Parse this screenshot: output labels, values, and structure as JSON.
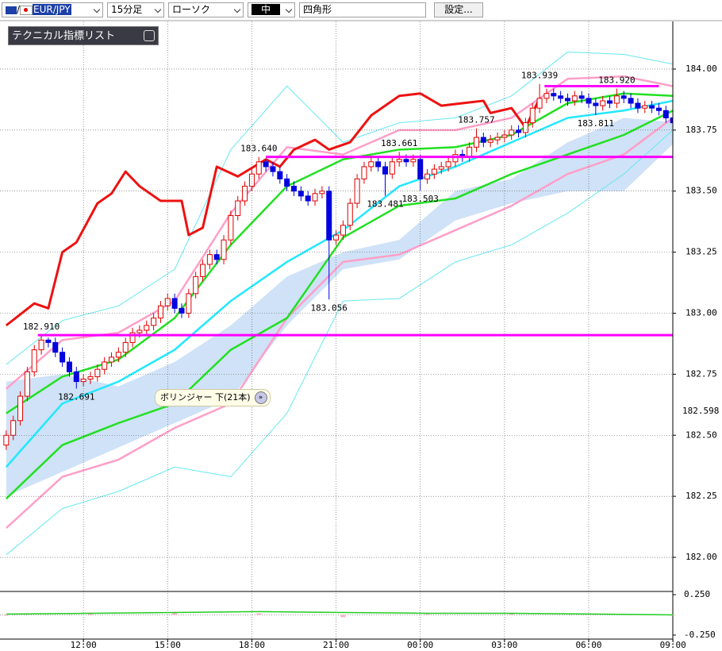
{
  "toolbar": {
    "symbol": "EUR/JPY",
    "timeframe": "15分足",
    "chart_style": "ローソク",
    "line_width": "中",
    "drawing_tool": "四角形",
    "settings_button": "設定..."
  },
  "indicator_panel": {
    "title": "テクニカル指標リスト"
  },
  "tooltip": {
    "text": "ボリンジャー 下(21本)"
  },
  "chart_data": {
    "type": "candlestick",
    "ylim": [
      181.87,
      184.195
    ],
    "yticks": [
      {
        "value": 184.0,
        "label": "184.00"
      },
      {
        "value": 183.75,
        "label": "183.75"
      },
      {
        "value": 183.5,
        "label": "183.50"
      },
      {
        "value": 183.25,
        "label": "183.25"
      },
      {
        "value": 183.0,
        "label": "183.00"
      },
      {
        "value": 182.75,
        "label": "182.75"
      },
      {
        "value": 182.5,
        "label": "182.50"
      },
      {
        "value": 182.25,
        "label": "182.25"
      },
      {
        "value": 182.0,
        "label": "182.00"
      }
    ],
    "price_marker": 182.598,
    "xlim": [
      -1,
      96
    ],
    "xticks": [
      {
        "value": 11,
        "label": "12:00"
      },
      {
        "value": 23,
        "label": "15:00"
      },
      {
        "value": 35,
        "label": "18:00"
      },
      {
        "value": 47,
        "label": "21:00"
      },
      {
        "value": 59,
        "label": "00:00"
      },
      {
        "value": 71,
        "label": "03:00"
      },
      {
        "value": 83,
        "label": "06:00"
      },
      {
        "value": 95,
        "label": "09:00"
      }
    ],
    "grid": true,
    "up_color": "#e00000",
    "down_color": "#0000e0",
    "open": [
      182.46,
      182.5,
      182.56,
      182.66,
      182.76,
      182.85,
      182.89,
      182.88,
      182.84,
      182.8,
      182.76,
      182.72,
      182.73,
      182.74,
      182.77,
      182.8,
      182.82,
      182.84,
      182.88,
      182.92,
      182.93,
      182.95,
      182.98,
      183.03,
      183.06,
      183.02,
      183.0,
      183.08,
      183.15,
      183.2,
      183.24,
      183.22,
      183.3,
      183.4,
      183.46,
      183.52,
      183.57,
      183.62,
      183.6,
      183.58,
      183.55,
      183.52,
      183.5,
      183.48,
      183.46,
      183.49,
      183.5,
      183.3,
      183.32,
      183.36,
      183.45,
      183.55,
      183.6,
      183.62,
      183.6,
      183.57,
      183.62,
      183.63,
      183.62,
      183.63,
      183.55,
      183.57,
      183.59,
      183.6,
      183.62,
      183.65,
      183.64,
      183.68,
      183.72,
      183.7,
      183.71,
      183.72,
      183.73,
      183.75,
      183.74,
      183.78,
      183.84,
      183.88,
      183.9,
      183.89,
      183.88,
      183.87,
      183.89,
      183.88,
      183.86,
      183.85,
      183.87,
      183.86,
      183.89,
      183.88,
      183.86,
      183.84,
      183.85,
      183.84,
      183.83,
      183.8
    ],
    "high": [
      182.52,
      182.58,
      182.68,
      182.78,
      182.87,
      182.91,
      182.9,
      182.9,
      182.86,
      182.82,
      182.78,
      182.75,
      182.76,
      182.79,
      182.82,
      182.84,
      182.86,
      182.9,
      182.94,
      182.95,
      182.97,
      183.0,
      183.05,
      183.08,
      183.08,
      183.04,
      183.1,
      183.17,
      183.22,
      183.26,
      183.26,
      183.32,
      183.42,
      183.48,
      183.54,
      183.59,
      183.64,
      183.63,
      183.62,
      183.6,
      183.57,
      183.54,
      183.52,
      183.5,
      183.51,
      183.52,
      183.52,
      183.34,
      183.38,
      183.47,
      183.57,
      183.62,
      183.64,
      183.64,
      183.62,
      183.64,
      183.661,
      183.65,
      183.65,
      183.65,
      183.59,
      183.61,
      183.62,
      183.64,
      183.67,
      183.67,
      183.7,
      183.757,
      183.74,
      183.73,
      183.74,
      183.75,
      183.77,
      183.77,
      183.8,
      183.86,
      183.939,
      183.92,
      183.92,
      183.91,
      183.9,
      183.91,
      183.91,
      183.9,
      183.88,
      183.89,
      183.89,
      183.92,
      183.91,
      183.9,
      183.88,
      183.87,
      183.87,
      183.86,
      183.85,
      183.82
    ],
    "low": [
      182.44,
      182.48,
      182.54,
      182.64,
      182.74,
      182.83,
      182.86,
      182.82,
      182.78,
      182.74,
      182.691,
      182.7,
      182.71,
      182.72,
      182.75,
      182.78,
      182.8,
      182.82,
      182.86,
      182.9,
      182.91,
      182.93,
      182.96,
      183.01,
      183.0,
      182.98,
      182.98,
      183.06,
      183.13,
      183.18,
      183.2,
      183.2,
      183.28,
      183.38,
      183.44,
      183.5,
      183.55,
      183.58,
      183.56,
      183.53,
      183.5,
      183.48,
      183.46,
      183.44,
      183.44,
      183.47,
      183.056,
      183.28,
      183.3,
      183.34,
      183.43,
      183.53,
      183.58,
      183.58,
      183.481,
      183.55,
      183.6,
      183.6,
      183.6,
      183.503,
      183.53,
      183.55,
      183.57,
      183.58,
      183.6,
      183.62,
      183.62,
      183.66,
      183.68,
      183.68,
      183.69,
      183.7,
      183.71,
      183.72,
      183.72,
      183.76,
      183.82,
      183.86,
      183.87,
      183.86,
      183.85,
      183.85,
      183.86,
      183.84,
      183.811,
      183.83,
      183.84,
      183.84,
      183.86,
      183.84,
      183.82,
      183.82,
      183.82,
      183.81,
      183.78,
      183.76
    ],
    "close": [
      182.5,
      182.56,
      182.66,
      182.76,
      182.85,
      182.89,
      182.88,
      182.84,
      182.8,
      182.76,
      182.72,
      182.73,
      182.74,
      182.77,
      182.8,
      182.82,
      182.84,
      182.88,
      182.92,
      182.93,
      182.95,
      182.98,
      183.03,
      183.06,
      183.02,
      183.0,
      183.08,
      183.15,
      183.2,
      183.24,
      183.22,
      183.3,
      183.4,
      183.46,
      183.52,
      183.57,
      183.62,
      183.6,
      183.58,
      183.55,
      183.52,
      183.5,
      183.48,
      183.46,
      183.49,
      183.5,
      183.3,
      183.32,
      183.36,
      183.45,
      183.55,
      183.6,
      183.62,
      183.6,
      183.57,
      183.62,
      183.63,
      183.62,
      183.63,
      183.55,
      183.57,
      183.59,
      183.6,
      183.62,
      183.65,
      183.64,
      183.68,
      183.72,
      183.7,
      183.71,
      183.72,
      183.73,
      183.75,
      183.74,
      183.78,
      183.84,
      183.88,
      183.9,
      183.89,
      183.88,
      183.87,
      183.89,
      183.88,
      183.86,
      183.85,
      183.87,
      183.86,
      183.89,
      183.88,
      183.86,
      183.84,
      183.85,
      183.84,
      183.83,
      183.8,
      183.78
    ],
    "cloud": {
      "color": "#cfe2f7",
      "x": [
        0,
        8,
        16,
        24,
        32,
        40,
        48,
        56,
        64,
        72,
        80,
        88,
        96
      ],
      "span_a": [
        182.72,
        182.75,
        182.7,
        182.8,
        182.95,
        183.15,
        183.25,
        183.3,
        183.5,
        183.55,
        183.7,
        183.8,
        183.78
      ],
      "span_b": [
        182.25,
        182.35,
        182.45,
        182.55,
        182.65,
        182.95,
        183.18,
        183.22,
        183.38,
        183.45,
        183.5,
        183.5,
        183.72
      ]
    },
    "lines": [
      {
        "color": "#66e8f0",
        "width": 1,
        "x": [
          0,
          8,
          16,
          24,
          32,
          40,
          48,
          56,
          64,
          72,
          80,
          88,
          95
        ],
        "values": [
          182.79,
          182.97,
          183.03,
          183.18,
          183.67,
          183.93,
          183.7,
          183.78,
          183.8,
          183.89,
          184.07,
          184.06,
          184.02
        ]
      },
      {
        "color": "#66e8f0",
        "width": 1,
        "x": [
          0,
          8,
          16,
          24,
          32,
          40,
          48,
          56,
          64,
          72,
          80,
          88,
          95
        ],
        "values": [
          182.01,
          182.2,
          182.27,
          182.37,
          182.33,
          182.59,
          183.05,
          183.06,
          183.21,
          183.28,
          183.41,
          183.57,
          183.75
        ]
      },
      {
        "color": "#ff9ec8",
        "width": 2.5,
        "x": [
          0,
          8,
          16,
          24,
          32,
          40,
          48,
          56,
          64,
          72,
          80,
          88,
          95
        ],
        "values": [
          182.69,
          182.89,
          182.92,
          183.05,
          183.41,
          183.68,
          183.65,
          183.75,
          183.75,
          183.8,
          183.96,
          183.97,
          183.93
        ]
      },
      {
        "color": "#ff9ec8",
        "width": 2.5,
        "x": [
          0,
          8,
          16,
          24,
          32,
          40,
          48,
          56,
          64,
          72,
          80,
          88,
          95
        ],
        "values": [
          182.12,
          182.33,
          182.4,
          182.53,
          182.63,
          182.98,
          183.21,
          183.24,
          183.34,
          183.44,
          183.57,
          183.65,
          183.8
        ]
      },
      {
        "color": "#22e022",
        "width": 2.5,
        "x": [
          0,
          8,
          16,
          24,
          32,
          40,
          48,
          56,
          64,
          72,
          80,
          88,
          95
        ],
        "values": [
          182.59,
          182.74,
          182.81,
          182.98,
          183.28,
          183.52,
          183.63,
          183.67,
          183.68,
          183.73,
          183.86,
          183.9,
          183.89
        ]
      },
      {
        "color": "#22e022",
        "width": 2.5,
        "x": [
          0,
          8,
          16,
          24,
          32,
          40,
          48,
          56,
          64,
          72,
          80,
          88,
          95
        ],
        "values": [
          182.24,
          182.46,
          182.55,
          182.63,
          182.85,
          182.98,
          183.31,
          183.44,
          183.47,
          183.57,
          183.65,
          183.73,
          183.83
        ]
      },
      {
        "color": "#22e8ff",
        "width": 2.5,
        "x": [
          0,
          8,
          16,
          24,
          32,
          40,
          48,
          56,
          64,
          72,
          80,
          88,
          95
        ],
        "values": [
          182.37,
          182.63,
          182.72,
          182.85,
          183.05,
          183.21,
          183.34,
          183.52,
          183.6,
          183.7,
          183.8,
          183.83,
          183.87
        ]
      },
      {
        "color": "#ee1111",
        "width": 3,
        "x": [
          0,
          4,
          6,
          8,
          10,
          13,
          15,
          17,
          19,
          22,
          25,
          26,
          28,
          30,
          33,
          37,
          39,
          41,
          44,
          46,
          49,
          52,
          56,
          59,
          62,
          65,
          68,
          69,
          72,
          74,
          76
        ],
        "values": [
          182.95,
          183.04,
          183.02,
          183.25,
          183.29,
          183.45,
          183.49,
          183.58,
          183.52,
          183.46,
          183.46,
          183.32,
          183.35,
          183.6,
          183.56,
          183.63,
          183.6,
          183.67,
          183.71,
          183.67,
          183.7,
          183.81,
          183.89,
          183.9,
          183.85,
          183.86,
          183.87,
          183.82,
          183.84,
          183.76,
          183.88
        ]
      }
    ],
    "levels": [
      {
        "value": 183.64,
        "from": 37,
        "to": 95,
        "color": "#ff00ff"
      },
      {
        "value": 183.93,
        "from": 76.7,
        "to": 93,
        "color": "#ff00ff"
      },
      {
        "value": 182.91,
        "from": 4.5,
        "to": 95,
        "color": "#ff00ff"
      }
    ],
    "annotations": [
      {
        "label": "182.910",
        "x": 5,
        "value": 182.91,
        "side": "above"
      },
      {
        "label": "182.691",
        "x": 10,
        "value": 182.691,
        "side": "below"
      },
      {
        "label": "183.640",
        "x": 36,
        "value": 183.64,
        "side": "above"
      },
      {
        "label": "183.056",
        "x": 46,
        "value": 183.056,
        "side": "below"
      },
      {
        "label": "183.481",
        "x": 54,
        "value": 183.481,
        "side": "below"
      },
      {
        "label": "183.661",
        "x": 56,
        "value": 183.661,
        "side": "above"
      },
      {
        "label": "183.503",
        "x": 59,
        "value": 183.503,
        "side": "below"
      },
      {
        "label": "183.757",
        "x": 67,
        "value": 183.757,
        "side": "above"
      },
      {
        "label": "183.939",
        "x": 76,
        "value": 183.939,
        "side": "above"
      },
      {
        "label": "183.920",
        "x": 87,
        "value": 183.92,
        "side": "above"
      },
      {
        "label": "183.811",
        "x": 84,
        "value": 183.811,
        "side": "below"
      }
    ],
    "sub_chart": {
      "ylim": [
        -0.27,
        0.27
      ],
      "yticks": [
        {
          "value": 0.25,
          "label": "0.250"
        },
        {
          "value": -0.25,
          "label": "-0.250"
        }
      ],
      "x": [
        0,
        12,
        24,
        36,
        48,
        60,
        72,
        84,
        95
      ],
      "line": [
        0.01,
        0.02,
        0.03,
        0.04,
        0.03,
        0.02,
        0.02,
        0.01,
        0.0
      ],
      "line_color": "#22cc22",
      "bars": [
        -0.01,
        0.02,
        0.03,
        0.02,
        -0.03,
        0.01,
        0.02,
        0.01,
        -0.01
      ],
      "bar_color": "#ffb3c6"
    }
  }
}
